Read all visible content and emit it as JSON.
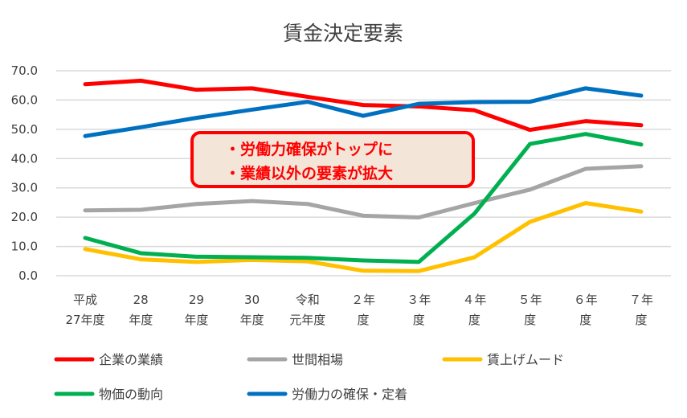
{
  "chart_data": {
    "type": "line",
    "title": "賃金決定要素",
    "xlabel": "",
    "ylabel": "",
    "ylim": [
      0,
      70
    ],
    "yticks": [
      "0.0",
      "10.0",
      "20.0",
      "30.0",
      "40.0",
      "50.0",
      "60.0",
      "70.0"
    ],
    "grid": true,
    "legend_position": "bottom",
    "categories": [
      [
        "平成",
        "27年度"
      ],
      [
        "28",
        "年度"
      ],
      [
        "29",
        "年度"
      ],
      [
        "30",
        "年度"
      ],
      [
        "令和",
        "元年度"
      ],
      [
        "２年",
        "度"
      ],
      [
        "３年",
        "度"
      ],
      [
        "４年",
        "度"
      ],
      [
        "５年",
        "度"
      ],
      [
        "６年",
        "度"
      ],
      [
        "７年",
        "度"
      ]
    ],
    "series": [
      {
        "name": "企業の業績",
        "color": "#ff0000",
        "values": [
          65.4,
          66.6,
          63.5,
          64.0,
          61.1,
          58.3,
          57.8,
          56.5,
          49.8,
          52.8,
          51.4
        ]
      },
      {
        "name": "世間相場",
        "color": "#a5a5a5",
        "values": [
          22.3,
          22.5,
          24.5,
          25.5,
          24.5,
          20.5,
          19.9,
          24.8,
          29.4,
          36.5,
          37.4
        ]
      },
      {
        "name": "賃上げムード",
        "color": "#ffc000",
        "values": [
          9.1,
          5.6,
          4.7,
          5.4,
          4.9,
          1.7,
          1.6,
          6.3,
          18.4,
          24.8,
          21.9
        ]
      },
      {
        "name": "物価の動向",
        "color": "#00b050",
        "values": [
          12.9,
          7.7,
          6.5,
          6.3,
          6.1,
          5.2,
          4.7,
          21.2,
          45.0,
          48.4,
          44.8
        ]
      },
      {
        "name": "労働力の確保・定着",
        "color": "#0070c0",
        "values": [
          47.7,
          50.7,
          53.9,
          56.7,
          59.4,
          54.6,
          58.7,
          59.3,
          59.4,
          64.0,
          61.5
        ]
      }
    ],
    "annotation": [
      "・労働力確保がトップに",
      "・業績以外の要素が拡大"
    ]
  }
}
